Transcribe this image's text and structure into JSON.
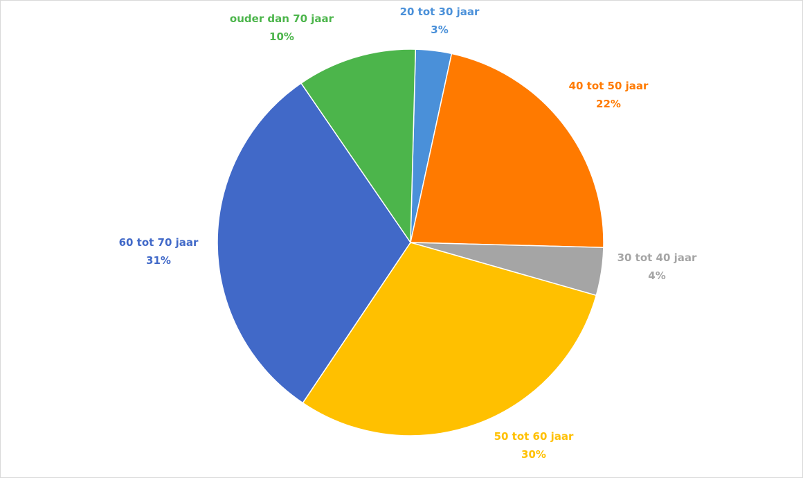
{
  "chart_data": {
    "type": "pie",
    "title": "",
    "slices": [
      {
        "category": "20 tot 30 jaar",
        "value": 3,
        "value_label": "3%",
        "color": "#4A90D9"
      },
      {
        "category": "40 tot 50 jaar",
        "value": 22,
        "value_label": "22%",
        "color": "#FF7A00"
      },
      {
        "category": "30 tot 40 jaar",
        "value": 4,
        "value_label": "4%",
        "color": "#A5A5A5"
      },
      {
        "category": "50 tot 60 jaar",
        "value": 30,
        "value_label": "30%",
        "color": "#FFC000"
      },
      {
        "category": "60 tot 70 jaar",
        "value": 31,
        "value_label": "31%",
        "color": "#4169C8"
      },
      {
        "category": "ouder dan 70 jaar",
        "value": 10,
        "value_label": "10%",
        "color": "#4CB54B"
      }
    ],
    "legend": "none"
  }
}
